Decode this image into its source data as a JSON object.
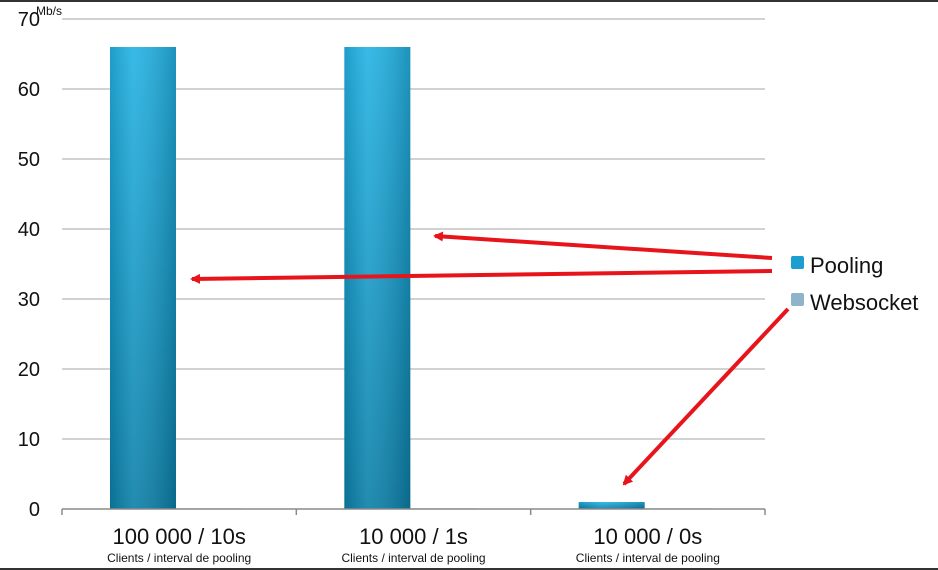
{
  "chart_data": {
    "type": "bar",
    "unit_label": "Mb/s",
    "categories": [
      "100 000 / 10s",
      "10 000 / 1s",
      "10 000 / 0s"
    ],
    "category_sublabels": [
      "Clients / interval de pooling",
      "Clients / interval de pooling",
      "Clients / interval de pooling"
    ],
    "series": [
      {
        "name": "Pooling",
        "values": [
          66,
          66,
          1
        ],
        "color": "#1a9fd0"
      },
      {
        "name": "Websocket",
        "values": [
          0.1,
          0.1,
          0.1
        ],
        "color": "#8fb3c8"
      }
    ],
    "ylim": [
      0,
      70
    ],
    "yticks": [
      0,
      10,
      20,
      30,
      40,
      50,
      60,
      70
    ],
    "grid": true,
    "legend_position": "right",
    "annotation_color": "#e8141b"
  }
}
